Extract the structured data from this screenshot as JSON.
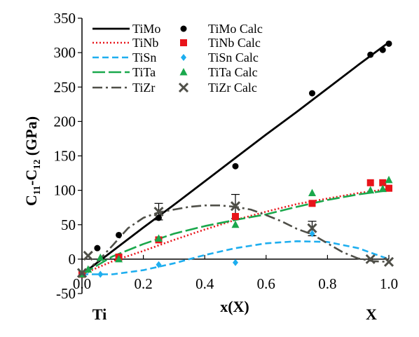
{
  "chart_data": {
    "type": "line",
    "title": "",
    "xlabel": "x(X)",
    "ylabel": {
      "base1": "C",
      "sub1": "11",
      "mid": "-C",
      "sub2": "12",
      "tail": " (GPa)"
    },
    "xlim": [
      0,
      1
    ],
    "ylim": [
      -50,
      350
    ],
    "x_ticks": [
      0,
      0.2,
      0.4,
      0.6,
      0.8,
      1
    ],
    "x_tick_labels": [
      "0.0",
      "0.2",
      "0.4",
      "0.6",
      "0.8",
      "1.0"
    ],
    "y_ticks": [
      -50,
      0,
      50,
      100,
      150,
      200,
      250,
      300,
      350
    ],
    "y_tick_labels": [
      "-50",
      "0",
      "50",
      "100",
      "150",
      "200",
      "250",
      "300",
      "350"
    ],
    "end_labels": {
      "left": "Ti",
      "right": "X"
    },
    "grid": false,
    "legend_position": "top-left",
    "fit_series": [
      {
        "name": "TiMo",
        "color": "#000000",
        "style": "solid",
        "x": [
          0.0,
          0.1,
          0.2,
          0.3,
          0.4,
          0.5,
          0.6,
          0.7,
          0.8,
          0.9,
          1.0
        ],
        "y": [
          -22,
          12,
          46,
          79,
          113,
          147,
          181,
          214,
          248,
          282,
          315
        ]
      },
      {
        "name": "TiNb",
        "color": "#e8141a",
        "style": "dotted",
        "x": [
          0.0,
          0.1,
          0.2,
          0.3,
          0.4,
          0.5,
          0.6,
          0.7,
          0.8,
          0.9,
          1.0
        ],
        "y": [
          -22,
          -3,
          12,
          28,
          43,
          57,
          69,
          80,
          88,
          96,
          102
        ]
      },
      {
        "name": "TiSn",
        "color": "#1eaeef",
        "style": "dashed",
        "x": [
          0.0,
          0.1,
          0.2,
          0.3,
          0.4,
          0.5,
          0.6,
          0.7,
          0.8,
          0.9,
          1.0
        ],
        "y": [
          -22,
          -22,
          -16,
          -6,
          6,
          16,
          23,
          26,
          25,
          16,
          0
        ]
      },
      {
        "name": "TiTa",
        "color": "#1aa84c",
        "style": "longdash",
        "x": [
          0.0,
          0.1,
          0.2,
          0.3,
          0.4,
          0.5,
          0.6,
          0.7,
          0.8,
          0.9,
          1.0
        ],
        "y": [
          -22,
          4,
          22,
          37,
          48,
          57,
          65,
          76,
          86,
          94,
          100
        ]
      },
      {
        "name": "TiZr",
        "color": "#4f4f48",
        "style": "dashdot",
        "x": [
          0.0,
          0.05,
          0.1,
          0.15,
          0.2,
          0.25,
          0.3,
          0.35,
          0.4,
          0.45,
          0.5,
          0.55,
          0.6,
          0.65,
          0.7,
          0.75,
          0.8,
          0.85,
          0.9,
          0.95,
          1.0
        ],
        "y": [
          -20,
          -4,
          20,
          45,
          60,
          68,
          72,
          76,
          78,
          78,
          76,
          72,
          64,
          55,
          44,
          36,
          23,
          10,
          1,
          -3,
          -4
        ]
      }
    ],
    "calc_series": [
      {
        "name": "TiMo Calc",
        "color": "#000000",
        "marker": "circle",
        "x": [
          0.0,
          0.05,
          0.12,
          0.25,
          0.5,
          0.75,
          0.94,
          0.98,
          1.0
        ],
        "y": [
          -22,
          16,
          35,
          60,
          135,
          241,
          297,
          304,
          313
        ]
      },
      {
        "name": "TiNb Calc",
        "color": "#e8141a",
        "marker": "square",
        "x": [
          0.0,
          0.12,
          0.25,
          0.5,
          0.75,
          0.94,
          0.98,
          1.0
        ],
        "y": [
          -22,
          3,
          28,
          62,
          81,
          111,
          111,
          103
        ]
      },
      {
        "name": "TiSn Calc",
        "color": "#1eaeef",
        "marker": "diamond",
        "x": [
          0.0,
          0.02,
          0.06,
          0.25,
          0.5,
          0.75
        ],
        "y": [
          -22,
          -16,
          -22,
          -8,
          -5,
          37
        ]
      },
      {
        "name": "TiTa Calc",
        "color": "#1aa84c",
        "marker": "triangle",
        "x": [
          0.0,
          0.02,
          0.06,
          0.12,
          0.25,
          0.5,
          0.75,
          0.94,
          0.98,
          1.0
        ],
        "y": [
          -22,
          -15,
          2,
          0,
          30,
          50,
          96,
          100,
          102,
          115
        ]
      },
      {
        "name": "TiZr Calc",
        "color": "#4f4f48",
        "marker": "x",
        "x": [
          0.0,
          0.02,
          0.25,
          0.5,
          0.75,
          0.94,
          1.0
        ],
        "y": [
          -20,
          5,
          69,
          77,
          45,
          0,
          -4
        ]
      }
    ],
    "error_bars": [
      {
        "x": 0.25,
        "center": 69,
        "low": 57,
        "high": 81
      },
      {
        "x": 0.5,
        "center": 77,
        "low": 59,
        "high": 94
      },
      {
        "x": 0.75,
        "center": 45,
        "low": 34,
        "high": 55
      }
    ]
  }
}
